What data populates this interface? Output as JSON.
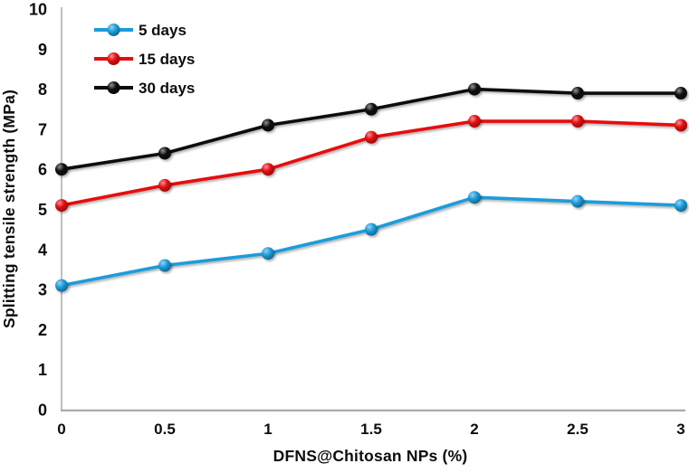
{
  "figure": {
    "background": "#ffffff"
  },
  "chart_data": {
    "type": "line",
    "title": "",
    "xlabel": "DFNS@Chitosan NPs  (%)",
    "ylabel": "Splitting tensile strength (MPa)",
    "x": [
      0,
      0.5,
      1,
      1.5,
      2,
      2.5,
      3
    ],
    "x_tick_labels": [
      "0",
      "0.5",
      "1",
      "1.5",
      "2",
      "2.5",
      "3"
    ],
    "y_ticks": [
      0,
      1,
      2,
      3,
      4,
      5,
      6,
      7,
      8,
      9,
      10
    ],
    "y_tick_labels": [
      "0",
      "1",
      "2",
      "3",
      "4",
      "5",
      "6",
      "7",
      "8",
      "9",
      "10"
    ],
    "xlim": [
      0,
      3
    ],
    "ylim": [
      0,
      10
    ],
    "grid": false,
    "legend_position": "top-left-inside",
    "axis_color": "#a6a6a6",
    "text_color": "#0d0d0d",
    "marker": "circle",
    "series": [
      {
        "name": "5 days",
        "color": "#1a9cdb",
        "values": [
          3.1,
          3.6,
          3.9,
          4.5,
          5.3,
          5.2,
          5.1
        ]
      },
      {
        "name": "15 days",
        "color": "#e60c11",
        "values": [
          5.1,
          5.6,
          6.0,
          6.8,
          7.2,
          7.2,
          7.1
        ]
      },
      {
        "name": "30 days",
        "color": "#0d0d0d",
        "values": [
          6.0,
          6.4,
          7.1,
          7.5,
          8.0,
          7.9,
          7.9
        ]
      }
    ]
  }
}
